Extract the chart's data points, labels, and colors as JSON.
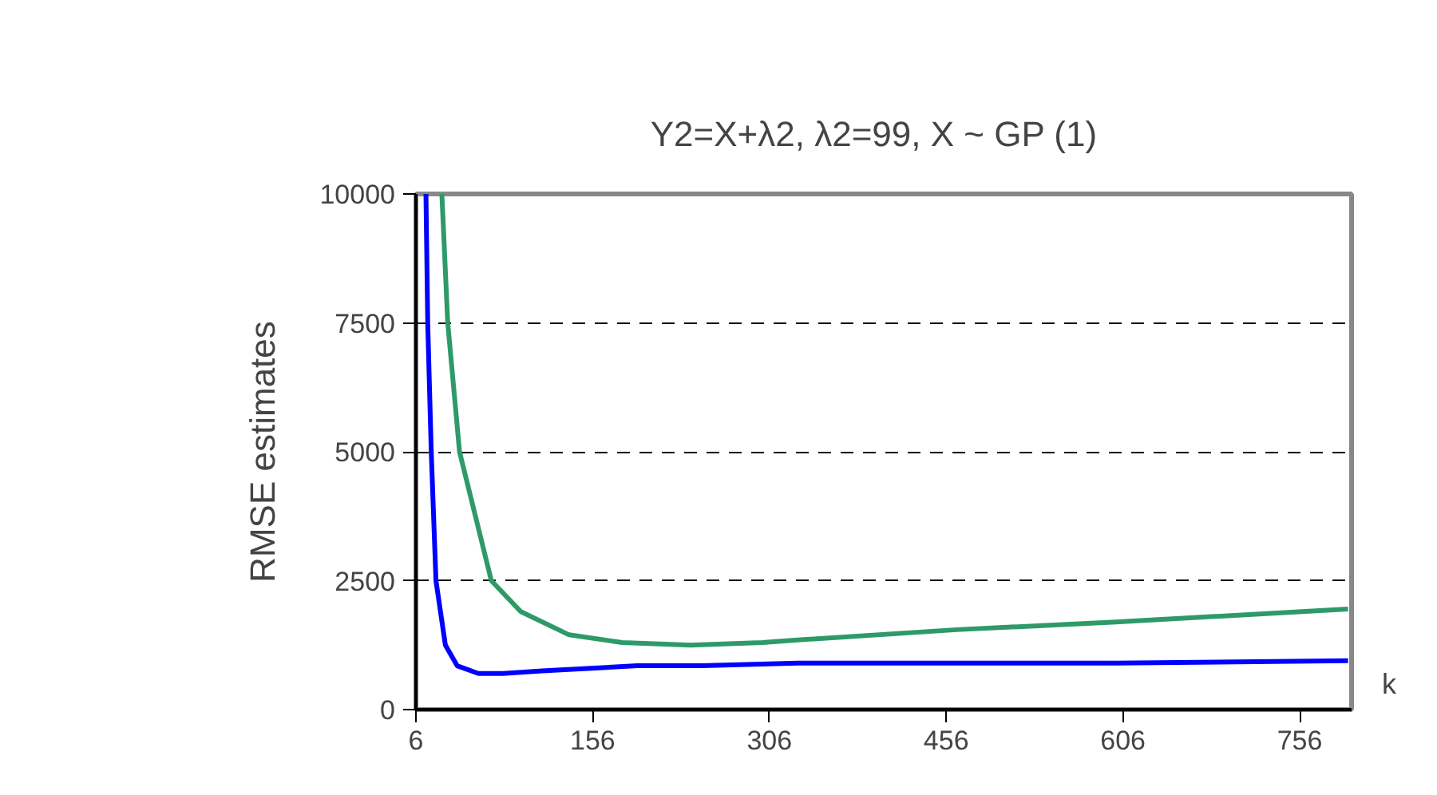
{
  "chart_data": {
    "type": "line",
    "title": "Y2=X+λ2,  λ2=99,  X ~ GP (1)",
    "xlabel": "k",
    "ylabel": "RMSE estimates",
    "xlim": [
      6,
      800
    ],
    "xticks": [
      6,
      156,
      306,
      456,
      606,
      756
    ],
    "ylim": [
      0,
      10000
    ],
    "yticks": [
      0,
      2500,
      5000,
      7500,
      10000
    ],
    "grid": "y",
    "line_style": "solid",
    "marker": "none",
    "series": [
      {
        "color": "#0000ff",
        "x": [
          14.5,
          16,
          19,
          23,
          31,
          41,
          59,
          80,
          113,
          194,
          249,
          330,
          465,
          600,
          797
        ],
        "values": [
          10000,
          7500,
          5000,
          2500,
          1250,
          850,
          700,
          700,
          750,
          850,
          850,
          900,
          900,
          900,
          950
        ]
      },
      {
        "color": "#2e9a68",
        "x": [
          28,
          33,
          43,
          70,
          95,
          136,
          181,
          239,
          300,
          330,
          465,
          600,
          797
        ],
        "values": [
          10000,
          7500,
          5000,
          2500,
          1900,
          1450,
          1300,
          1250,
          1300,
          1350,
          1550,
          1700,
          1950
        ]
      }
    ]
  }
}
